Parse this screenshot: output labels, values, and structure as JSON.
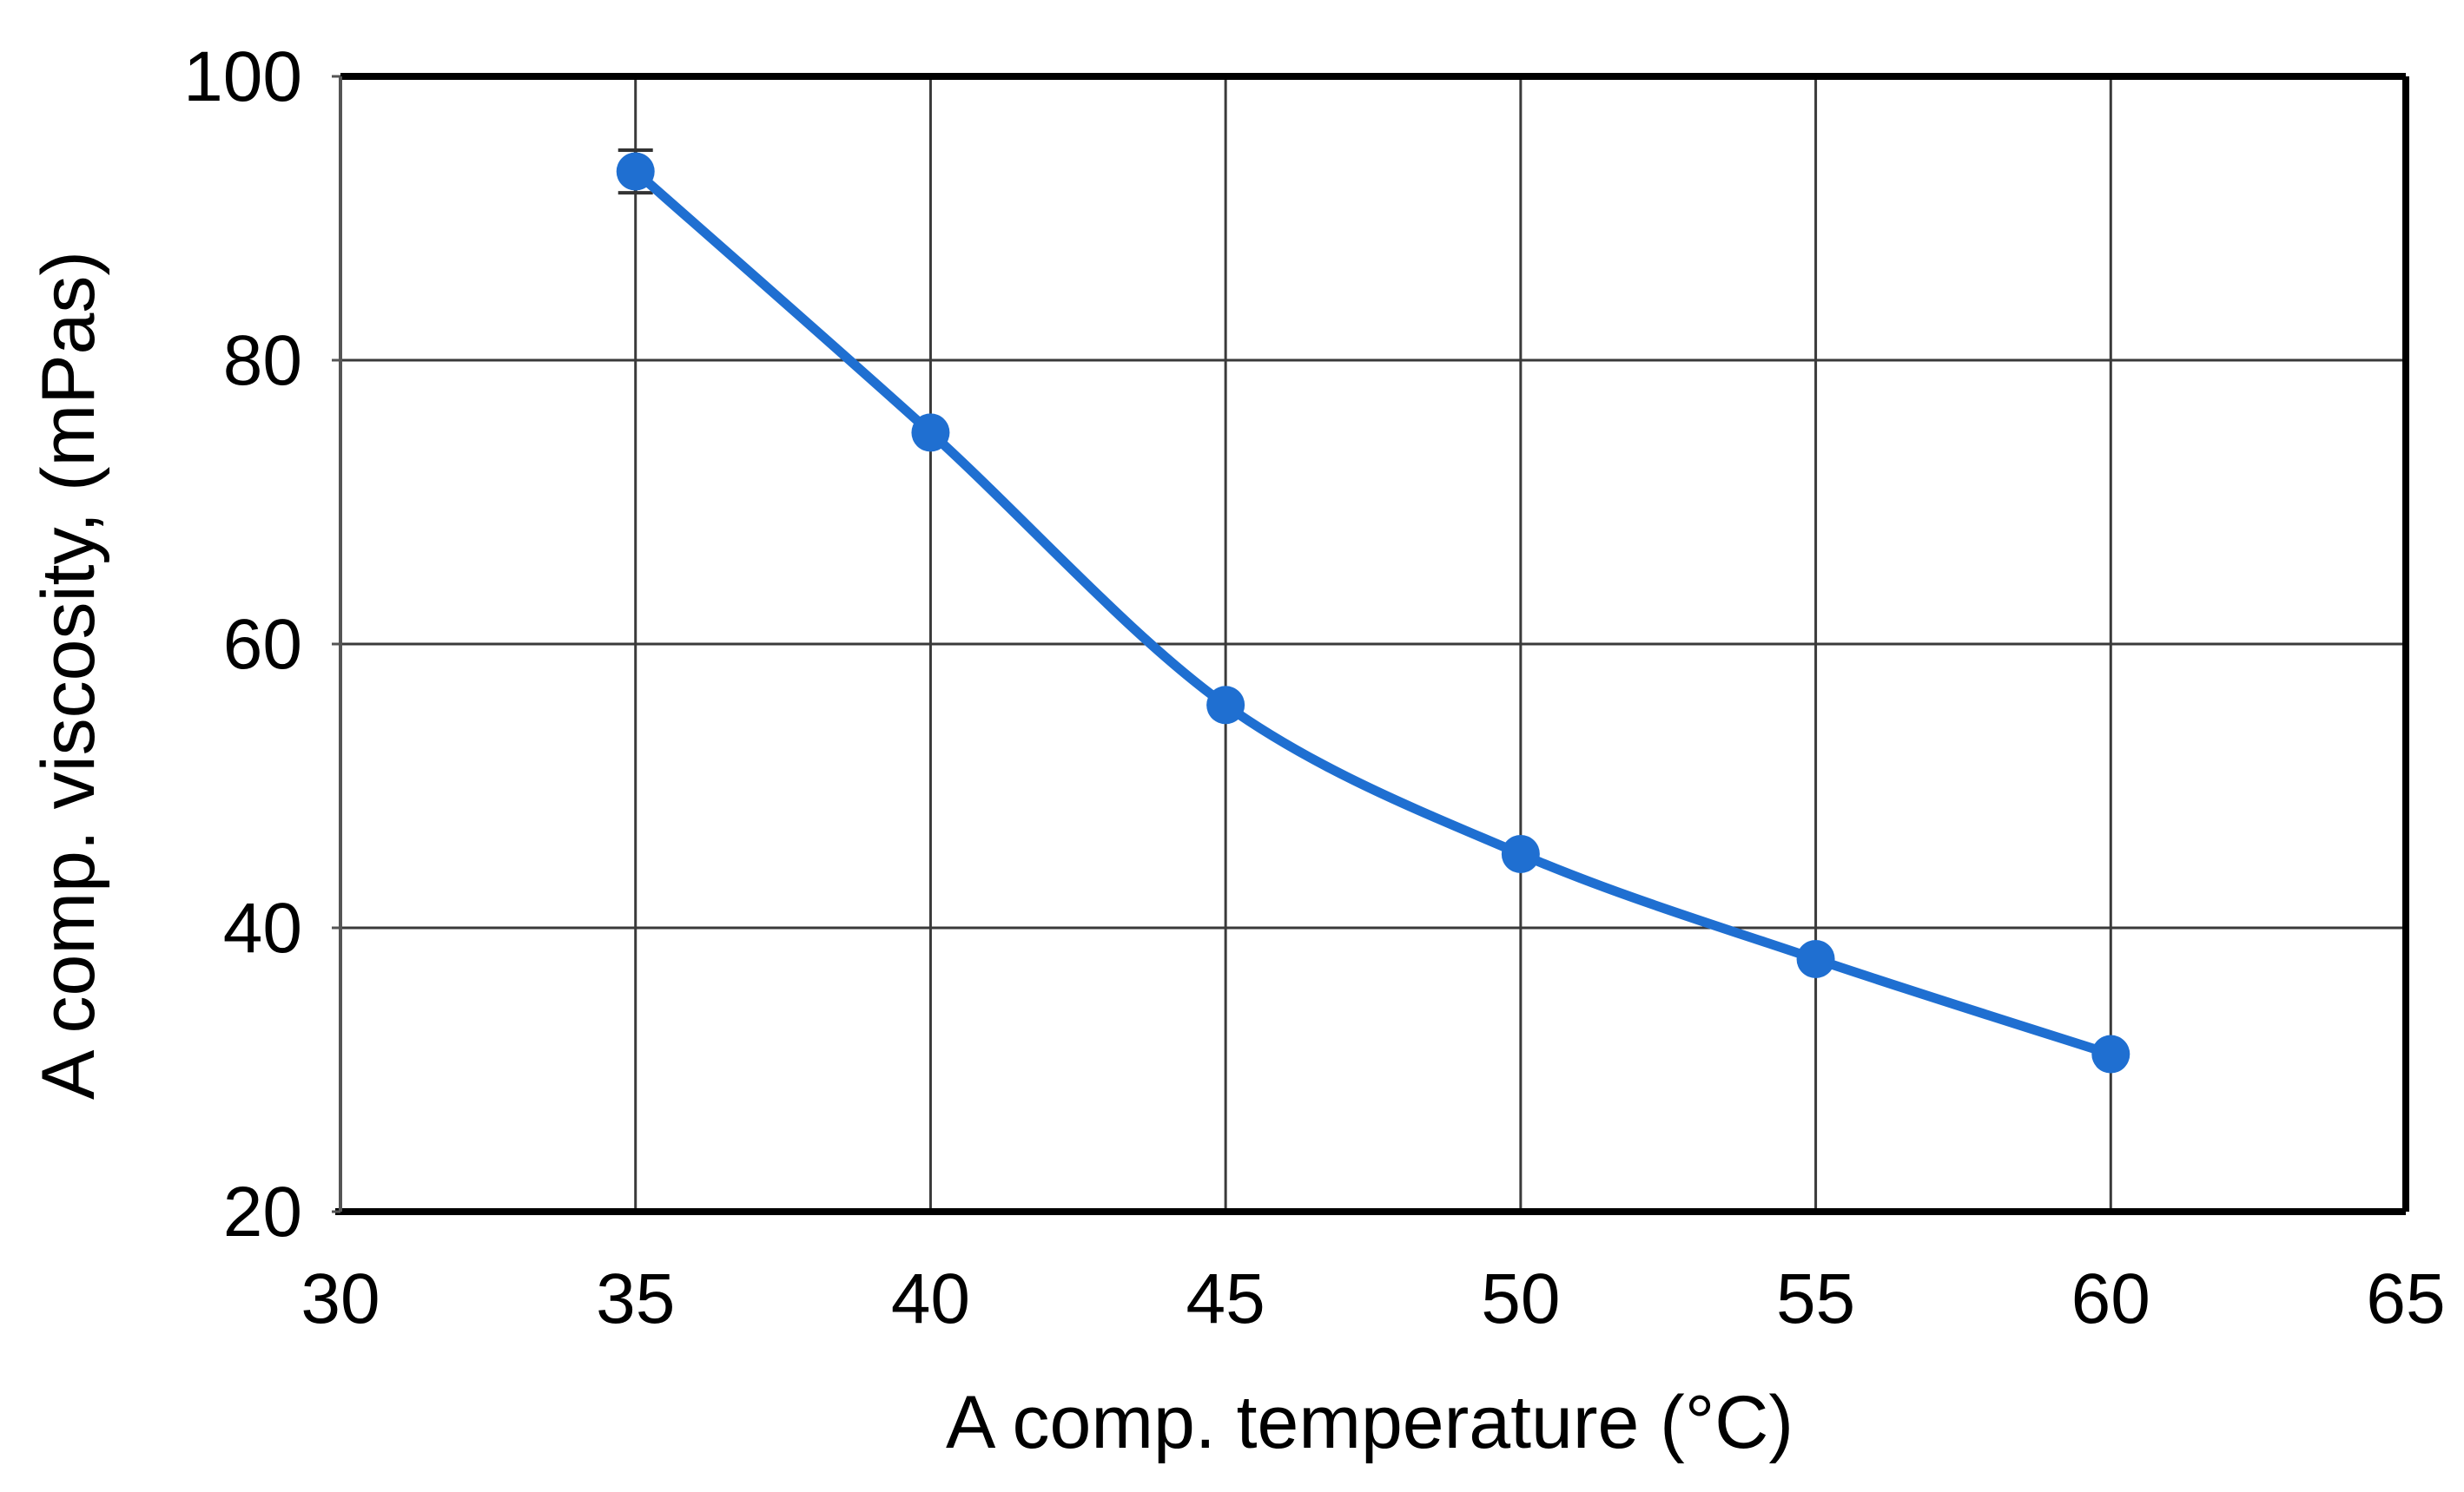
{
  "chart_data": {
    "type": "line",
    "title": "",
    "xlabel": "A comp. temperature (°C)",
    "ylabel": "A comp. viscosity, (mPas)",
    "xlim": [
      30,
      65
    ],
    "ylim": [
      20,
      100
    ],
    "xticks": [
      30,
      35,
      40,
      45,
      50,
      55,
      60,
      65
    ],
    "yticks": [
      20,
      40,
      60,
      80,
      100
    ],
    "grid": true,
    "legend": "none",
    "series": [
      {
        "name": "A comp. viscosity",
        "color": "#1f6fd1",
        "x": [
          35,
          40,
          45,
          50,
          55,
          60
        ],
        "y": [
          93.3,
          74.9,
          55.7,
          45.2,
          37.8,
          31.1
        ],
        "error": [
          1.5,
          0,
          0,
          0,
          0,
          0
        ]
      }
    ]
  }
}
